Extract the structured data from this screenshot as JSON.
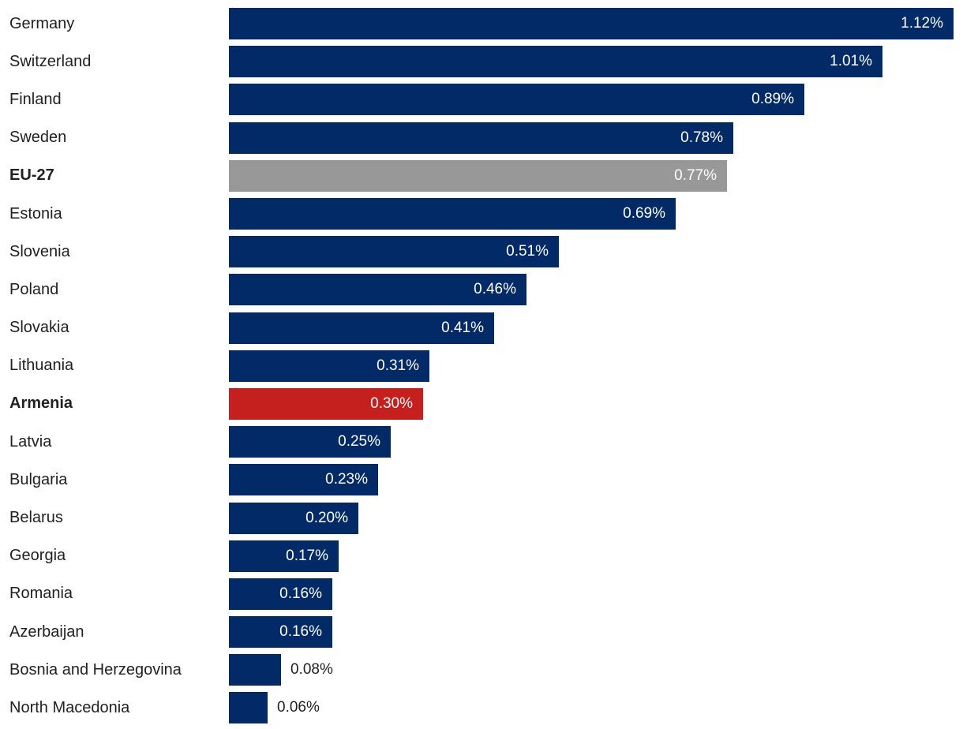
{
  "chart_data": {
    "type": "bar",
    "orientation": "horizontal",
    "title": "",
    "xlabel": "",
    "ylabel": "",
    "unit": "%",
    "xlim": [
      0,
      1.12
    ],
    "grid": false,
    "legend": false,
    "categories": [
      "Germany",
      "Switzerland",
      "Finland",
      "Sweden",
      "EU-27",
      "Estonia",
      "Slovenia",
      "Poland",
      "Slovakia",
      "Lithuania",
      "Armenia",
      "Latvia",
      "Bulgaria",
      "Belarus",
      "Georgia",
      "Romania",
      "Azerbaijan",
      "Bosnia and Herzegovina",
      "North Macedonia"
    ],
    "values": [
      1.12,
      1.01,
      0.89,
      0.78,
      0.77,
      0.69,
      0.51,
      0.46,
      0.41,
      0.31,
      0.3,
      0.25,
      0.23,
      0.2,
      0.17,
      0.16,
      0.16,
      0.08,
      0.06
    ],
    "value_labels": [
      "1.12%",
      "1.01%",
      "0.89%",
      "0.78%",
      "0.77%",
      "0.69%",
      "0.51%",
      "0.46%",
      "0.41%",
      "0.31%",
      "0.30%",
      "0.25%",
      "0.23%",
      "0.20%",
      "0.17%",
      "0.16%",
      "0.16%",
      "0.08%",
      "0.06%"
    ],
    "bar_color_keys": [
      "navy",
      "navy",
      "navy",
      "navy",
      "gray",
      "navy",
      "navy",
      "navy",
      "navy",
      "navy",
      "red",
      "navy",
      "navy",
      "navy",
      "navy",
      "navy",
      "navy",
      "navy",
      "navy"
    ],
    "bold_categories": [
      "EU-27",
      "Armenia"
    ],
    "value_label_position": [
      "inside",
      "inside",
      "inside",
      "inside",
      "inside",
      "inside",
      "inside",
      "inside",
      "inside",
      "inside",
      "inside",
      "inside",
      "inside",
      "inside",
      "inside",
      "inside",
      "inside",
      "outside",
      "outside"
    ]
  },
  "style": {
    "bar_color_navy": "#022A66",
    "bar_color_gray": "#989898",
    "bar_color_red": "#C6201E",
    "category_label_color": "#212121",
    "value_label_inside_color": "#FFFFFF",
    "value_label_outside_color": "#212121",
    "background_color": "#FFFFFF"
  }
}
